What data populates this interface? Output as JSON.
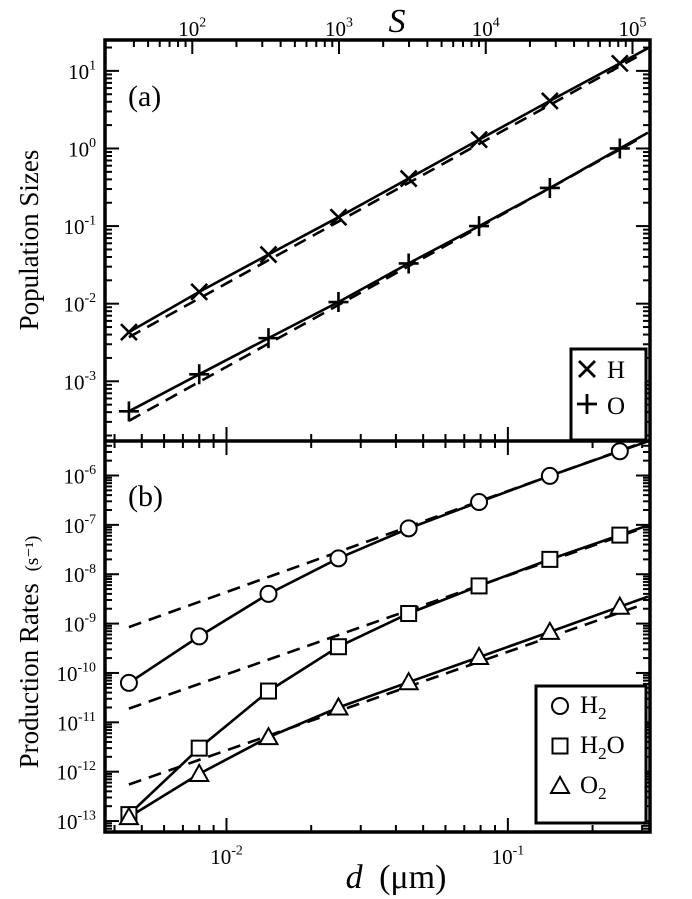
{
  "chart_data": [
    {
      "panel_label": "(a)",
      "type": "line",
      "ylabel": "Population Sizes",
      "x_axis_bottom": {
        "label_italic": "d",
        "label_unit": "(μm)",
        "scale": "log",
        "range": [
          0.0037,
          0.32
        ],
        "ticks": [
          0.01,
          0.1
        ]
      },
      "x_axis_top": {
        "label": "S",
        "scale": "log",
        "ticks": [
          100,
          1000,
          10000,
          100000
        ]
      },
      "y_axis": {
        "scale": "log",
        "range": [
          0.00017,
          25
        ],
        "ticks": [
          0.001,
          0.01,
          0.1,
          1,
          10
        ]
      },
      "legend": {
        "placement": "bottom-right",
        "entries": [
          {
            "marker": "x",
            "label": "H"
          },
          {
            "marker": "+",
            "label": "O"
          }
        ]
      },
      "series": [
        {
          "name": "H",
          "marker": "x",
          "style": "solid",
          "x": [
            0.0045,
            0.008,
            0.0141,
            0.025,
            0.0444,
            0.079,
            0.141,
            0.25
          ],
          "y": [
            0.0043,
            0.0142,
            0.043,
            0.13,
            0.41,
            1.3,
            4.1,
            12.5
          ]
        },
        {
          "name": "O",
          "marker": "+",
          "style": "solid",
          "x": [
            0.0045,
            0.008,
            0.0141,
            0.025,
            0.0444,
            0.079,
            0.141,
            0.25
          ],
          "y": [
            0.00041,
            0.00123,
            0.0036,
            0.0105,
            0.033,
            0.1,
            0.31,
            1.0
          ]
        },
        {
          "style": "dashed",
          "x": [
            0.0045,
            0.3
          ],
          "y": [
            0.0037,
            16.5
          ]
        },
        {
          "style": "dashed",
          "x": [
            0.0045,
            0.3
          ],
          "y": [
            0.00031,
            1.4
          ]
        }
      ]
    },
    {
      "panel_label": "(b)",
      "type": "line",
      "ylabel": "Production Rates",
      "ylabel_unit": "(s⁻¹)",
      "x_axis_bottom": {
        "label_italic": "d",
        "label_unit": "(μm)",
        "scale": "log",
        "range": [
          0.0037,
          0.32
        ],
        "ticks": [
          0.01,
          0.1
        ]
      },
      "y_axis": {
        "scale": "log",
        "range": [
          6e-14,
          5e-06
        ],
        "ticks": [
          1e-13,
          1e-12,
          1e-11,
          1e-10,
          1e-09,
          1e-08,
          1e-07,
          1e-06
        ]
      },
      "legend": {
        "placement": "bottom-right",
        "entries": [
          {
            "marker": "circle",
            "label": "H",
            "sub": "2",
            "rest": ""
          },
          {
            "marker": "square",
            "label": "H",
            "sub": "2",
            "rest": "O"
          },
          {
            "marker": "triangle",
            "label": "O",
            "sub": "2",
            "rest": ""
          }
        ]
      },
      "series": [
        {
          "name": "H2",
          "marker": "circle",
          "style": "solid",
          "x": [
            0.0045,
            0.008,
            0.0141,
            0.025,
            0.0444,
            0.079,
            0.141,
            0.25
          ],
          "y": [
            6.3e-11,
            5.5e-10,
            4e-09,
            2.1e-08,
            8.5e-08,
            2.9e-07,
            9.8e-07,
            3.1e-06
          ]
        },
        {
          "name": "H2O",
          "marker": "square",
          "style": "solid",
          "x": [
            0.0045,
            0.008,
            0.0141,
            0.025,
            0.0444,
            0.079,
            0.141,
            0.25
          ],
          "y": [
            1.35e-13,
            3e-12,
            4.3e-11,
            3.4e-10,
            1.6e-09,
            5.8e-09,
            2e-08,
            6.2e-08
          ]
        },
        {
          "name": "O2",
          "marker": "triangle",
          "style": "solid",
          "x": [
            0.0045,
            0.008,
            0.0141,
            0.025,
            0.0444,
            0.079,
            0.141,
            0.25
          ],
          "y": [
            1.2e-13,
            9e-13,
            5e-12,
            2e-11,
            6.5e-11,
            2.1e-10,
            6.8e-10,
            2.2e-09
          ]
        },
        {
          "style": "dashed",
          "x": [
            0.0045,
            0.3
          ],
          "y": [
            8.5e-10,
            4.6e-06
          ]
        },
        {
          "style": "dashed",
          "x": [
            0.0045,
            0.3
          ],
          "y": [
            1.9e-11,
            8.5e-08
          ]
        },
        {
          "style": "dashed",
          "x": [
            0.0045,
            0.3
          ],
          "y": [
            5.5e-13,
            2.4e-09
          ]
        }
      ]
    }
  ]
}
